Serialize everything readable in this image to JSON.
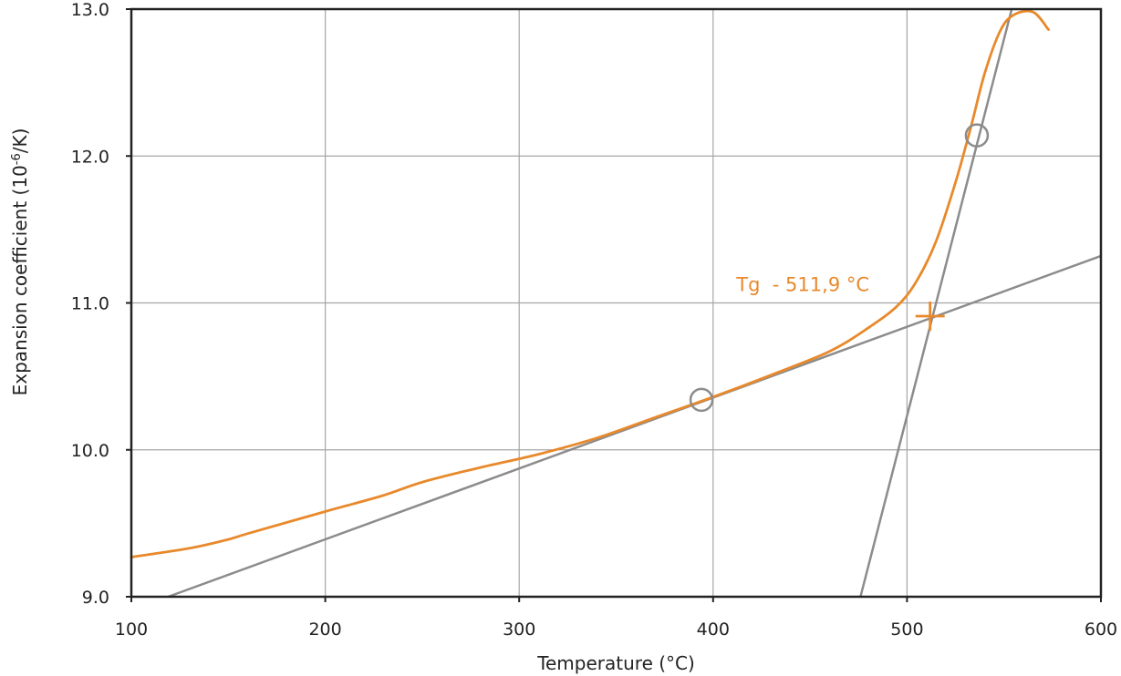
{
  "chart_data": {
    "type": "line",
    "xlabel": "Temperature (°C)",
    "ylabel": "Expansion coefficient (10",
    "ylabel_sup": "-6",
    "ylabel_tail": "/K)",
    "xlim": [
      100,
      600
    ],
    "ylim": [
      9.0,
      13.0
    ],
    "x_ticks": [
      "100",
      "200",
      "300",
      "400",
      "500",
      "600"
    ],
    "y_ticks": [
      "9.0",
      "10.0",
      "11.0",
      "12.0",
      "13.0"
    ],
    "grid": true,
    "colors": {
      "curve": "#e8892b",
      "reference": "#8c8c8c",
      "grid": "#a6a6a6",
      "axis": "#222222"
    },
    "series": [
      {
        "style": "curve",
        "x": [
          100,
          130,
          150,
          160,
          200,
          230,
          250,
          280,
          310,
          340,
          370,
          400,
          430,
          460,
          480,
          495,
          505,
          515,
          525,
          533,
          540,
          548,
          555,
          565,
          573
        ],
        "y": [
          9.27,
          9.33,
          9.39,
          9.43,
          9.58,
          9.69,
          9.78,
          9.88,
          9.97,
          10.08,
          10.22,
          10.36,
          10.51,
          10.67,
          10.83,
          10.98,
          11.15,
          11.42,
          11.82,
          12.2,
          12.56,
          12.85,
          12.96,
          12.98,
          12.86
        ]
      },
      {
        "style": "reference",
        "x": [
          119,
          600
        ],
        "y": [
          9.0,
          11.32
        ]
      },
      {
        "style": "reference",
        "x": [
          476,
          554
        ],
        "y": [
          9.0,
          13.0
        ]
      }
    ],
    "markers": [
      {
        "shape": "circle",
        "x": 394,
        "y": 10.34
      },
      {
        "shape": "circle",
        "x": 536,
        "y": 12.14
      },
      {
        "shape": "cross",
        "x": 511.9,
        "y": 10.91
      }
    ],
    "annotations": [
      {
        "text": "Tg  - 511,9 °C",
        "x": 412,
        "y": 11.08
      }
    ]
  }
}
